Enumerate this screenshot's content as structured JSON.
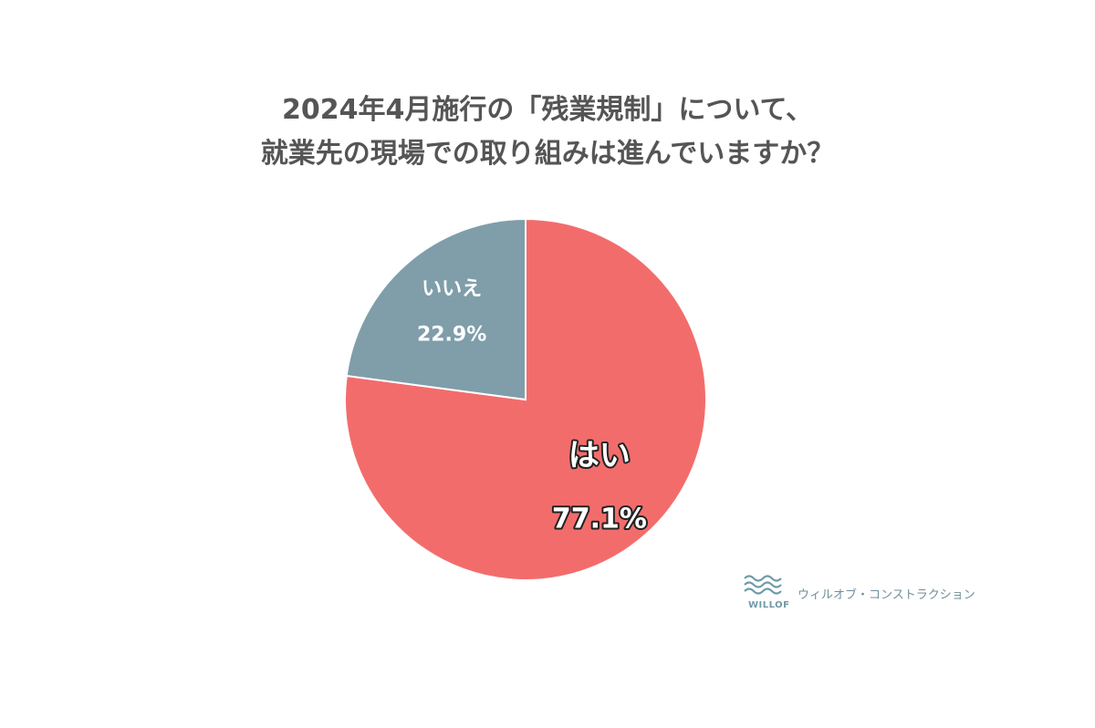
{
  "chart_data": {
    "type": "pie",
    "title_lines": [
      "2024年4月施行の「残業規制」について、",
      "就業先の現場での取り組みは進んでいますか？"
    ],
    "slices": [
      {
        "label": "はい",
        "value": 77.1,
        "value_label": "77.1%",
        "color": "#f36c6c"
      },
      {
        "label": "いいえ",
        "value": 22.9,
        "value_label": "22.9%",
        "color": "#7f9eaa"
      }
    ],
    "legend": "none"
  },
  "brand": {
    "wordmark": "WILLOF",
    "name": "ウィルオブ・コンストラクション",
    "color": "#6f9aa8",
    "icon": "wave-logo-icon"
  }
}
